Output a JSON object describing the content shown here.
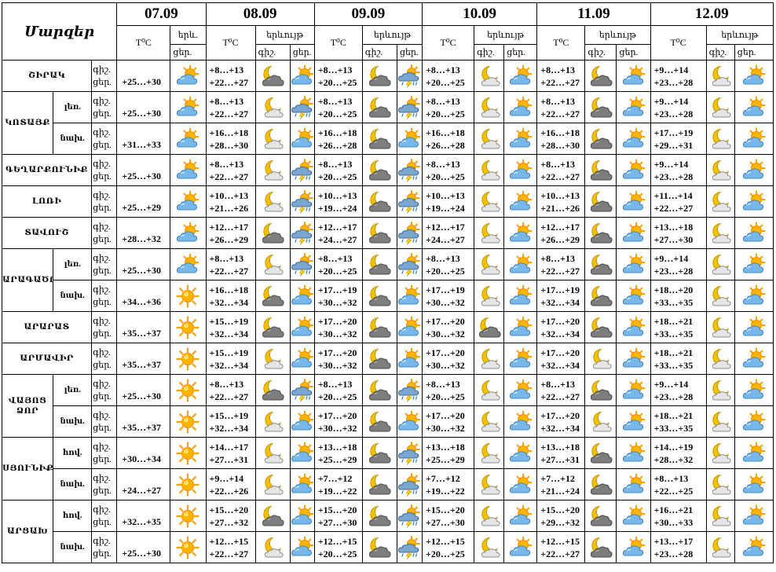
{
  "header": {
    "region_label": "Մարզեր",
    "temp_label": "T⁰C",
    "first_phen_label": "երև.",
    "phen_label": "երևույթ",
    "night_short": "գիշ.",
    "day_short": "ցեր.",
    "dates": [
      "07.09",
      "08.09",
      "09.09",
      "10.09",
      "11.09",
      "12.09"
    ]
  },
  "icon_legend": {
    "sun": "sun-icon",
    "sun_cloud": "sun-behind-cloud-icon",
    "moon_cloud": "moon-cloud-icon",
    "moon_dark_cloud": "moon-dark-cloud-icon",
    "sun_cloud_rain_thunder": "sun-cloud-rain-thunder-icon"
  },
  "rows": [
    {
      "region": "ՇԻՐԱԿ",
      "sub": "",
      "t7": "+25…+30",
      "i7": "sun_cloud",
      "d": [
        [
          "+8…+13",
          "+22…+27",
          "moon_dark_cloud",
          "sun_cloud"
        ],
        [
          "+8…+13",
          "+20…+25",
          "moon_dark_cloud",
          "sun_cloud_rain_thunder"
        ],
        [
          "+8…+13",
          "+20…+25",
          "moon_cloud",
          "sun_cloud"
        ],
        [
          "+8…+13",
          "+22…+27",
          "moon_dark_cloud",
          "sun_cloud"
        ],
        [
          "+9…+14",
          "+23…+28",
          "moon_cloud",
          "sun_cloud"
        ]
      ]
    },
    {
      "region": "ԿՈՏԱՅՔ",
      "sub": "լեռ.",
      "t7": "+25…+30",
      "i7": "sun_cloud",
      "d": [
        [
          "+8…+13",
          "+22…+27",
          "moon_cloud",
          "sun_cloud_rain_thunder"
        ],
        [
          "+8…+13",
          "+20…+25",
          "moon_dark_cloud",
          "sun_cloud_rain_thunder"
        ],
        [
          "+8…+13",
          "+20…+25",
          "moon_cloud",
          "sun_cloud"
        ],
        [
          "+8…+13",
          "+22…+27",
          "moon_dark_cloud",
          "sun_cloud"
        ],
        [
          "+9…+14",
          "+23…+28",
          "moon_cloud",
          "sun_cloud"
        ]
      ]
    },
    {
      "region": "",
      "sub": "նախ.",
      "t7": "+31…+33",
      "i7": "sun_cloud",
      "d": [
        [
          "+16…+18",
          "+28…+30",
          "moon_cloud",
          "sun_cloud"
        ],
        [
          "+16…+18",
          "+26…+28",
          "moon_dark_cloud",
          "sun_cloud"
        ],
        [
          "+16…+18",
          "+26…+28",
          "moon_cloud",
          "sun_cloud"
        ],
        [
          "+16…+18",
          "+28…+30",
          "moon_dark_cloud",
          "sun_cloud"
        ],
        [
          "+17…+19",
          "+29…+31",
          "moon_cloud",
          "sun_cloud"
        ]
      ]
    },
    {
      "region": "ԳԵՂԱՐՔՈՒՆԻՔ",
      "sub": "",
      "t7": "+25…+30",
      "i7": "sun_cloud",
      "d": [
        [
          "+8…+13",
          "+22…+27",
          "moon_cloud",
          "sun_cloud_rain_thunder"
        ],
        [
          "+8…+13",
          "+20…+25",
          "moon_dark_cloud",
          "sun_cloud_rain_thunder"
        ],
        [
          "+8…+13",
          "+20…+25",
          "moon_cloud",
          "sun_cloud"
        ],
        [
          "+8…+13",
          "+22…+27",
          "moon_dark_cloud",
          "sun_cloud"
        ],
        [
          "+9…+14",
          "+23…+28",
          "moon_cloud",
          "sun_cloud"
        ]
      ]
    },
    {
      "region": "ԼՈՌԻ",
      "sub": "",
      "t7": "+25…+29",
      "i7": "sun_cloud",
      "d": [
        [
          "+10…+13",
          "+21…+26",
          "moon_cloud",
          "sun_cloud_rain_thunder"
        ],
        [
          "+10…+13",
          "+19…+24",
          "moon_dark_cloud",
          "sun_cloud_rain_thunder"
        ],
        [
          "+10…+13",
          "+19…+24",
          "moon_cloud",
          "sun_cloud"
        ],
        [
          "+10…+13",
          "+21…+26",
          "moon_dark_cloud",
          "sun_cloud"
        ],
        [
          "+11…+14",
          "+22…+27",
          "moon_cloud",
          "sun_cloud"
        ]
      ]
    },
    {
      "region": "ՏԱՎՈՒՇ",
      "sub": "",
      "t7": "+28…+32",
      "i7": "sun_cloud",
      "d": [
        [
          "+12…+17",
          "+26…+29",
          "moon_dark_cloud",
          "sun_cloud_rain_thunder"
        ],
        [
          "+12…+17",
          "+24…+27",
          "moon_dark_cloud",
          "sun_cloud_rain_thunder"
        ],
        [
          "+12…+17",
          "+24…+27",
          "moon_cloud",
          "sun_cloud"
        ],
        [
          "+12…+17",
          "+26…+29",
          "moon_dark_cloud",
          "sun_cloud"
        ],
        [
          "+13…+18",
          "+27…+30",
          "moon_cloud",
          "sun_cloud"
        ]
      ]
    },
    {
      "region": "ԱՐԱԳԱԾՈՏՆ",
      "sub": "լեռ.",
      "t7": "+25…+30",
      "i7": "sun_cloud",
      "d": [
        [
          "+8…+13",
          "+22…+27",
          "moon_cloud",
          "sun_cloud_rain_thunder"
        ],
        [
          "+8…+13",
          "+20…+25",
          "moon_dark_cloud",
          "sun_cloud_rain_thunder"
        ],
        [
          "+8…+13",
          "+20…+25",
          "moon_cloud",
          "sun_cloud"
        ],
        [
          "+8…+13",
          "+22…+27",
          "moon_dark_cloud",
          "sun_cloud"
        ],
        [
          "+9…+14",
          "+23…+28",
          "moon_cloud",
          "sun_cloud"
        ]
      ]
    },
    {
      "region": "",
      "sub": "նախ.",
      "t7": "+34…+36",
      "i7": "sun",
      "d": [
        [
          "+16…+18",
          "+32…+34",
          "moon_dark_cloud",
          "sun_cloud"
        ],
        [
          "+17…+19",
          "+30…+32",
          "moon_dark_cloud",
          "sun_cloud"
        ],
        [
          "+17…+19",
          "+30…+32",
          "moon_cloud",
          "sun_cloud"
        ],
        [
          "+17…+19",
          "+32…+34",
          "moon_dark_cloud",
          "sun_cloud"
        ],
        [
          "+18…+20",
          "+33…+35",
          "moon_cloud",
          "sun_cloud"
        ]
      ]
    },
    {
      "region": "ԱՐԱՐԱՏ",
      "sub": "",
      "t7": "+35…+37",
      "i7": "sun",
      "d": [
        [
          "+15…+19",
          "+32…+34",
          "moon_dark_cloud",
          "sun_cloud"
        ],
        [
          "+17…+20",
          "+30…+32",
          "moon_dark_cloud",
          "sun_cloud"
        ],
        [
          "+17…+20",
          "+30…+32",
          "moon_dark_cloud",
          "sun_cloud"
        ],
        [
          "+17…+20",
          "+32…+34",
          "moon_dark_cloud",
          "sun_cloud"
        ],
        [
          "+18…+21",
          "+33…+35",
          "moon_cloud",
          "sun_cloud"
        ]
      ]
    },
    {
      "region": "ԱՐՄԱՎԻՐ",
      "sub": "",
      "t7": "+35…+37",
      "i7": "sun",
      "d": [
        [
          "+15…+19",
          "+32…+34",
          "moon_cloud",
          "sun_cloud"
        ],
        [
          "+17…+20",
          "+30…+32",
          "moon_dark_cloud",
          "sun_cloud"
        ],
        [
          "+17…+20",
          "+30…+32",
          "moon_cloud",
          "sun_cloud"
        ],
        [
          "+17…+20",
          "+32…+34",
          "moon_cloud",
          "sun_cloud"
        ],
        [
          "+18…+21",
          "+33…+35",
          "moon_cloud",
          "sun_cloud"
        ]
      ]
    },
    {
      "region": "ՎԱՅՈՑ ՁՈՐ",
      "sub": "լեռ.",
      "t7": "+25…+30",
      "i7": "sun",
      "d": [
        [
          "+8…+13",
          "+22…+27",
          "moon_dark_cloud",
          "sun_cloud_rain_thunder"
        ],
        [
          "+8…+13",
          "+20…+25",
          "moon_dark_cloud",
          "sun_cloud_rain_thunder"
        ],
        [
          "+8…+13",
          "+20…+25",
          "moon_cloud",
          "sun_cloud"
        ],
        [
          "+8…+13",
          "+22…+27",
          "moon_dark_cloud",
          "sun_cloud"
        ],
        [
          "+9…+14",
          "+23…+28",
          "moon_cloud",
          "sun_cloud"
        ]
      ]
    },
    {
      "region": "",
      "sub": "նախ.",
      "t7": "+35…+37",
      "i7": "sun",
      "d": [
        [
          "+15…+19",
          "+32…+34",
          "moon_cloud",
          "sun_cloud"
        ],
        [
          "+17…+20",
          "+30…+32",
          "moon_dark_cloud",
          "sun_cloud"
        ],
        [
          "+17…+20",
          "+30…+32",
          "moon_cloud",
          "sun_cloud"
        ],
        [
          "+17…+20",
          "+32…+34",
          "moon_cloud",
          "sun_cloud"
        ],
        [
          "+18…+21",
          "+33…+35",
          "moon_cloud",
          "sun_cloud"
        ]
      ]
    },
    {
      "region": "ՍՅՈՒՆԻՔ",
      "sub": "հով.",
      "t7": "+30…+34",
      "i7": "sun",
      "d": [
        [
          "+14…+17",
          "+27…+31",
          "moon_cloud",
          "sun_cloud"
        ],
        [
          "+13…+18",
          "+25…+29",
          "moon_dark_cloud",
          "sun_cloud_rain_thunder"
        ],
        [
          "+13…+18",
          "+25…+29",
          "moon_cloud",
          "sun_cloud"
        ],
        [
          "+13…+18",
          "+27…+31",
          "moon_dark_cloud",
          "sun_cloud"
        ],
        [
          "+14…+19",
          "+28…+32",
          "moon_cloud",
          "sun_cloud"
        ]
      ]
    },
    {
      "region": "",
      "sub": "նախ.",
      "t7": "+24…+27",
      "i7": "sun",
      "d": [
        [
          "+9…+14",
          "+22…+26",
          "moon_cloud",
          "sun_cloud"
        ],
        [
          "+7…+12",
          "+19…+22",
          "moon_dark_cloud",
          "sun_cloud_rain_thunder"
        ],
        [
          "+7…+12",
          "+19…+22",
          "moon_cloud",
          "sun_cloud"
        ],
        [
          "+7…+12",
          "+21…+24",
          "moon_dark_cloud",
          "sun_cloud"
        ],
        [
          "+8…+13",
          "+22…+25",
          "moon_cloud",
          "sun_cloud"
        ]
      ]
    },
    {
      "region": "ԱՐՑԱԽ",
      "sub": "հով.",
      "t7": "+32…+35",
      "i7": "sun",
      "d": [
        [
          "+15…+20",
          "+27…+32",
          "moon_dark_cloud",
          "sun_cloud"
        ],
        [
          "+15…+20",
          "+27…+30",
          "moon_dark_cloud",
          "sun_cloud_rain_thunder"
        ],
        [
          "+15…+20",
          "+27…+30",
          "moon_cloud",
          "sun_cloud"
        ],
        [
          "+15…+20",
          "+29…+32",
          "moon_dark_cloud",
          "sun_cloud"
        ],
        [
          "+16…+21",
          "+30…+33",
          "moon_cloud",
          "sun_cloud"
        ]
      ]
    },
    {
      "region": "",
      "sub": "նախ.",
      "t7": "+25…+30",
      "i7": "sun",
      "d": [
        [
          "+12…+15",
          "+22…+27",
          "moon_cloud",
          "sun_cloud"
        ],
        [
          "+12…+15",
          "+20…+25",
          "moon_dark_cloud",
          "sun_cloud_rain_thunder"
        ],
        [
          "+12…+15",
          "+20…+25",
          "moon_cloud",
          "sun_cloud"
        ],
        [
          "+12…+15",
          "+22…+27",
          "moon_dark_cloud",
          "sun_cloud"
        ],
        [
          "+13…+17",
          "+23…+28",
          "moon_cloud",
          "sun_cloud"
        ]
      ]
    }
  ]
}
